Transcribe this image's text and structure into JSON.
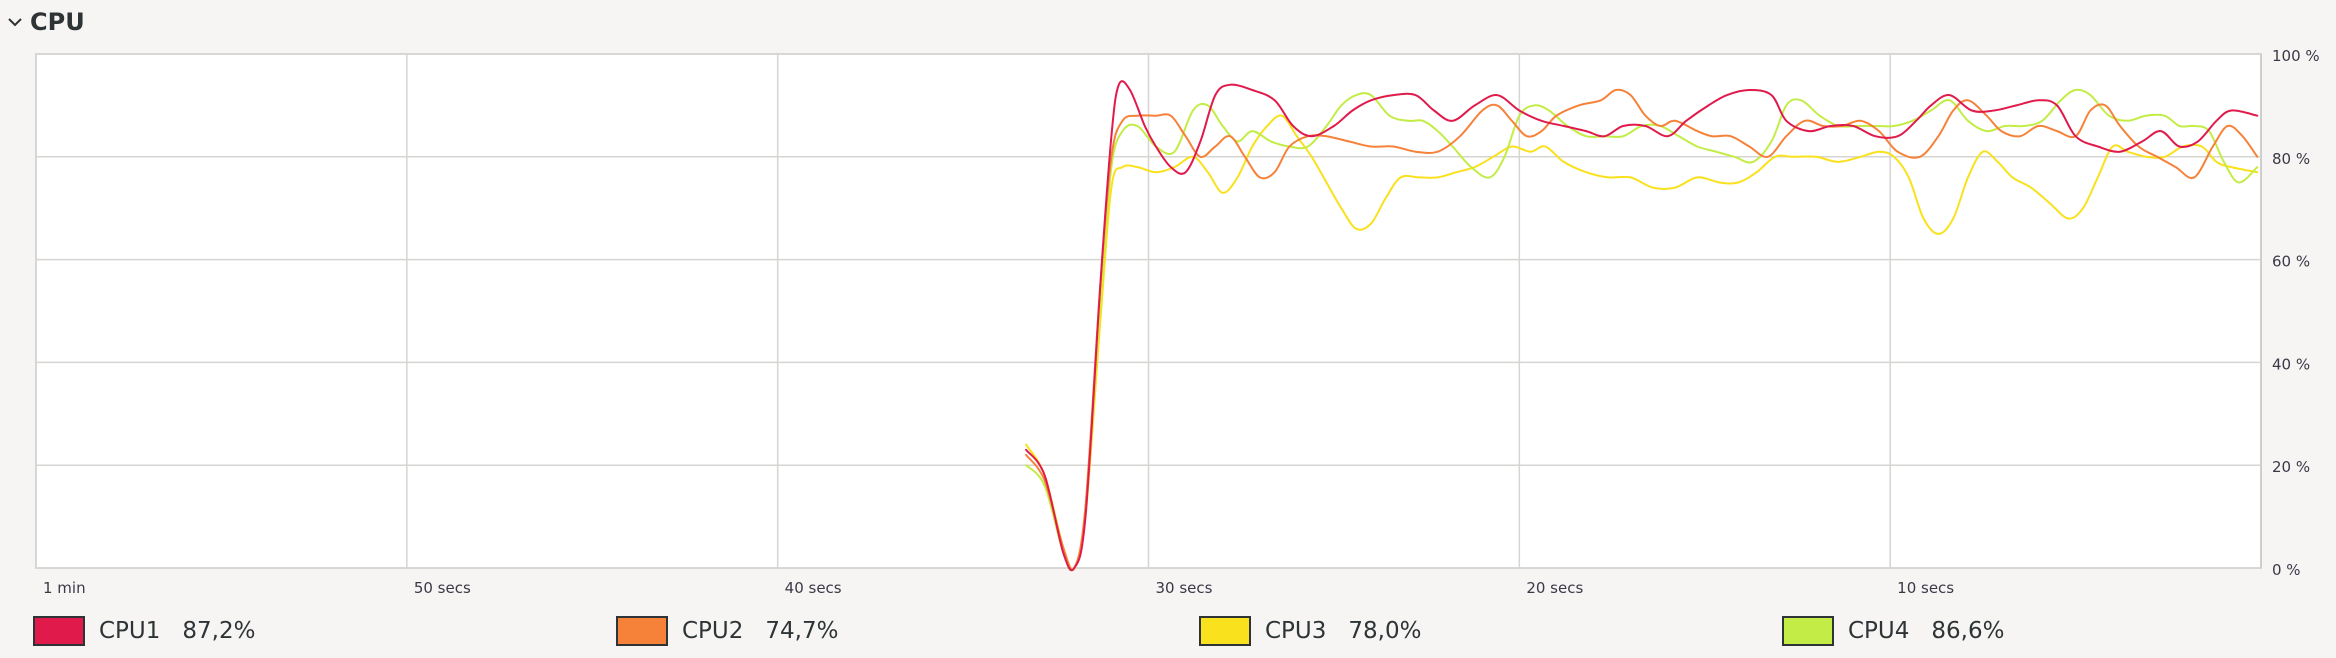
{
  "section": {
    "title": "CPU"
  },
  "chart_data": {
    "type": "line",
    "x_unit": "seconds ago",
    "x_range": [
      60,
      0
    ],
    "y_range": [
      0,
      100
    ],
    "x_ticks": [
      {
        "t": 60,
        "label": "1 min"
      },
      {
        "t": 50,
        "label": "50 secs"
      },
      {
        "t": 40,
        "label": "40 secs"
      },
      {
        "t": 30,
        "label": "30 secs"
      },
      {
        "t": 20,
        "label": "20 secs"
      },
      {
        "t": 10,
        "label": "10 secs"
      }
    ],
    "y_ticks": [
      {
        "v": 100,
        "label": "100 %"
      },
      {
        "v": 80,
        "label": "80 %"
      },
      {
        "v": 60,
        "label": "60 %"
      },
      {
        "v": 40,
        "label": "40 %"
      },
      {
        "v": 20,
        "label": "20 %"
      },
      {
        "v": 0,
        "label": "0 %"
      }
    ],
    "grid": true,
    "series": [
      {
        "name": "CPU1",
        "value_label": "87,2%",
        "color": "#e01b4c",
        "points": [
          [
            33.3,
            23
          ],
          [
            32.8,
            18
          ],
          [
            32.3,
            3
          ],
          [
            32.0,
            0
          ],
          [
            31.7,
            10
          ],
          [
            31.3,
            55
          ],
          [
            31.0,
            84
          ],
          [
            30.8,
            94
          ],
          [
            30.5,
            93
          ],
          [
            30.1,
            86
          ],
          [
            29.8,
            82
          ],
          [
            29.4,
            78
          ],
          [
            29.0,
            77
          ],
          [
            28.6,
            83
          ],
          [
            28.2,
            92
          ],
          [
            27.8,
            94
          ],
          [
            27.2,
            93
          ],
          [
            26.6,
            91
          ],
          [
            26.1,
            86
          ],
          [
            25.6,
            84
          ],
          [
            25.0,
            86
          ],
          [
            24.5,
            89
          ],
          [
            24.0,
            91
          ],
          [
            23.4,
            92
          ],
          [
            22.8,
            92
          ],
          [
            22.3,
            89
          ],
          [
            21.8,
            87
          ],
          [
            21.2,
            90
          ],
          [
            20.6,
            92
          ],
          [
            20.0,
            89
          ],
          [
            19.4,
            87
          ],
          [
            18.8,
            86
          ],
          [
            18.2,
            85
          ],
          [
            17.7,
            84
          ],
          [
            17.2,
            86
          ],
          [
            16.6,
            86
          ],
          [
            16.0,
            84
          ],
          [
            15.5,
            87
          ],
          [
            14.9,
            90
          ],
          [
            14.4,
            92
          ],
          [
            13.8,
            93
          ],
          [
            13.2,
            92
          ],
          [
            12.8,
            87
          ],
          [
            12.2,
            85
          ],
          [
            11.6,
            86
          ],
          [
            11.0,
            86
          ],
          [
            10.4,
            84
          ],
          [
            9.8,
            84
          ],
          [
            9.3,
            87
          ],
          [
            8.9,
            90
          ],
          [
            8.4,
            92
          ],
          [
            7.8,
            89
          ],
          [
            7.2,
            89
          ],
          [
            6.6,
            90
          ],
          [
            6.0,
            91
          ],
          [
            5.5,
            90
          ],
          [
            5.0,
            84
          ],
          [
            4.4,
            82
          ],
          [
            3.8,
            81
          ],
          [
            3.2,
            83
          ],
          [
            2.7,
            85
          ],
          [
            2.2,
            82
          ],
          [
            1.7,
            83
          ],
          [
            1.2,
            87
          ],
          [
            0.8,
            89
          ],
          [
            0.1,
            88
          ]
        ]
      },
      {
        "name": "CPU2",
        "value_label": "74,7%",
        "color": "#f6823a",
        "points": [
          [
            33.3,
            22
          ],
          [
            32.8,
            17
          ],
          [
            32.3,
            4
          ],
          [
            32.0,
            0
          ],
          [
            31.7,
            12
          ],
          [
            31.3,
            55
          ],
          [
            31.0,
            80
          ],
          [
            30.7,
            87
          ],
          [
            30.3,
            88
          ],
          [
            29.8,
            88
          ],
          [
            29.4,
            88
          ],
          [
            29.0,
            84
          ],
          [
            28.6,
            80
          ],
          [
            28.2,
            82
          ],
          [
            27.8,
            84
          ],
          [
            27.4,
            80
          ],
          [
            27.0,
            76
          ],
          [
            26.6,
            77
          ],
          [
            26.2,
            82
          ],
          [
            25.7,
            84
          ],
          [
            25.2,
            84
          ],
          [
            24.6,
            83
          ],
          [
            24.0,
            82
          ],
          [
            23.4,
            82
          ],
          [
            22.8,
            81
          ],
          [
            22.2,
            81
          ],
          [
            21.6,
            84
          ],
          [
            21.0,
            89
          ],
          [
            20.6,
            90
          ],
          [
            20.2,
            87
          ],
          [
            19.8,
            84
          ],
          [
            19.4,
            85
          ],
          [
            19.0,
            88
          ],
          [
            18.4,
            90
          ],
          [
            17.8,
            91
          ],
          [
            17.4,
            93
          ],
          [
            17.0,
            92
          ],
          [
            16.6,
            88
          ],
          [
            16.2,
            86
          ],
          [
            15.8,
            87
          ],
          [
            15.2,
            85
          ],
          [
            14.8,
            84
          ],
          [
            14.3,
            84
          ],
          [
            13.8,
            82
          ],
          [
            13.3,
            80
          ],
          [
            12.8,
            84
          ],
          [
            12.3,
            87
          ],
          [
            11.8,
            86
          ],
          [
            11.3,
            86
          ],
          [
            10.8,
            87
          ],
          [
            10.3,
            85
          ],
          [
            9.8,
            81
          ],
          [
            9.2,
            80
          ],
          [
            8.7,
            84
          ],
          [
            8.3,
            89
          ],
          [
            7.9,
            91
          ],
          [
            7.4,
            88
          ],
          [
            7.0,
            85
          ],
          [
            6.5,
            84
          ],
          [
            6.0,
            86
          ],
          [
            5.5,
            85
          ],
          [
            5.0,
            84
          ],
          [
            4.6,
            89
          ],
          [
            4.2,
            90
          ],
          [
            3.8,
            86
          ],
          [
            3.3,
            82
          ],
          [
            2.8,
            80
          ],
          [
            2.3,
            78
          ],
          [
            1.8,
            76
          ],
          [
            1.3,
            82
          ],
          [
            0.9,
            86
          ],
          [
            0.5,
            84
          ],
          [
            0.1,
            80
          ]
        ]
      },
      {
        "name": "CPU3",
        "value_label": "78,0%",
        "color": "#f9e11d",
        "points": [
          [
            33.3,
            24
          ],
          [
            32.8,
            18
          ],
          [
            32.3,
            4
          ],
          [
            32.0,
            0
          ],
          [
            31.7,
            10
          ],
          [
            31.3,
            48
          ],
          [
            31.0,
            74
          ],
          [
            30.7,
            78
          ],
          [
            30.3,
            78
          ],
          [
            29.8,
            77
          ],
          [
            29.3,
            78
          ],
          [
            28.8,
            80
          ],
          [
            28.4,
            77
          ],
          [
            28.0,
            73
          ],
          [
            27.6,
            76
          ],
          [
            27.2,
            82
          ],
          [
            26.8,
            86
          ],
          [
            26.4,
            88
          ],
          [
            26.0,
            84
          ],
          [
            25.6,
            80
          ],
          [
            25.2,
            75
          ],
          [
            24.8,
            70
          ],
          [
            24.4,
            66
          ],
          [
            24.0,
            67
          ],
          [
            23.6,
            72
          ],
          [
            23.2,
            76
          ],
          [
            22.7,
            76
          ],
          [
            22.2,
            76
          ],
          [
            21.7,
            77
          ],
          [
            21.2,
            78
          ],
          [
            20.7,
            80
          ],
          [
            20.2,
            82
          ],
          [
            19.7,
            81
          ],
          [
            19.3,
            82
          ],
          [
            18.8,
            79
          ],
          [
            18.2,
            77
          ],
          [
            17.6,
            76
          ],
          [
            17.0,
            76
          ],
          [
            16.4,
            74
          ],
          [
            15.8,
            74
          ],
          [
            15.2,
            76
          ],
          [
            14.6,
            75
          ],
          [
            14.1,
            75
          ],
          [
            13.6,
            77
          ],
          [
            13.1,
            80
          ],
          [
            12.6,
            80
          ],
          [
            12.0,
            80
          ],
          [
            11.4,
            79
          ],
          [
            10.8,
            80
          ],
          [
            10.3,
            81
          ],
          [
            9.9,
            80
          ],
          [
            9.5,
            76
          ],
          [
            9.1,
            68
          ],
          [
            8.7,
            65
          ],
          [
            8.3,
            68
          ],
          [
            7.9,
            76
          ],
          [
            7.5,
            81
          ],
          [
            7.1,
            79
          ],
          [
            6.7,
            76
          ],
          [
            6.2,
            74
          ],
          [
            5.7,
            71
          ],
          [
            5.2,
            68
          ],
          [
            4.8,
            70
          ],
          [
            4.4,
            76
          ],
          [
            4.0,
            82
          ],
          [
            3.6,
            81
          ],
          [
            3.1,
            80
          ],
          [
            2.6,
            80
          ],
          [
            2.1,
            82
          ],
          [
            1.6,
            82
          ],
          [
            1.2,
            79
          ],
          [
            0.8,
            78
          ],
          [
            0.1,
            77
          ]
        ]
      },
      {
        "name": "CPU4",
        "value_label": "86,6%",
        "color": "#c3ed46",
        "points": [
          [
            33.3,
            20
          ],
          [
            32.8,
            16
          ],
          [
            32.3,
            3
          ],
          [
            32.0,
            0
          ],
          [
            31.7,
            11
          ],
          [
            31.3,
            52
          ],
          [
            31.0,
            78
          ],
          [
            30.7,
            85
          ],
          [
            30.3,
            86
          ],
          [
            29.8,
            82
          ],
          [
            29.3,
            81
          ],
          [
            28.8,
            89
          ],
          [
            28.4,
            90
          ],
          [
            28.0,
            86
          ],
          [
            27.6,
            83
          ],
          [
            27.2,
            85
          ],
          [
            26.7,
            83
          ],
          [
            26.2,
            82
          ],
          [
            25.7,
            82
          ],
          [
            25.2,
            86
          ],
          [
            24.8,
            90
          ],
          [
            24.4,
            92
          ],
          [
            24.0,
            92
          ],
          [
            23.5,
            88
          ],
          [
            23.0,
            87
          ],
          [
            22.6,
            87
          ],
          [
            22.2,
            85
          ],
          [
            21.8,
            82
          ],
          [
            21.3,
            78
          ],
          [
            20.8,
            76
          ],
          [
            20.4,
            80
          ],
          [
            20.0,
            88
          ],
          [
            19.6,
            90
          ],
          [
            19.2,
            89
          ],
          [
            18.7,
            86
          ],
          [
            18.2,
            84
          ],
          [
            17.7,
            84
          ],
          [
            17.2,
            84
          ],
          [
            16.7,
            86
          ],
          [
            16.2,
            86
          ],
          [
            15.7,
            84
          ],
          [
            15.2,
            82
          ],
          [
            14.7,
            81
          ],
          [
            14.2,
            80
          ],
          [
            13.7,
            79
          ],
          [
            13.2,
            83
          ],
          [
            12.8,
            90
          ],
          [
            12.4,
            91
          ],
          [
            11.9,
            88
          ],
          [
            11.4,
            86
          ],
          [
            10.9,
            86
          ],
          [
            10.4,
            86
          ],
          [
            9.9,
            86
          ],
          [
            9.4,
            87
          ],
          [
            8.9,
            89
          ],
          [
            8.4,
            91
          ],
          [
            7.9,
            87
          ],
          [
            7.4,
            85
          ],
          [
            6.9,
            86
          ],
          [
            6.4,
            86
          ],
          [
            5.9,
            87
          ],
          [
            5.4,
            91
          ],
          [
            5.0,
            93
          ],
          [
            4.6,
            92
          ],
          [
            4.1,
            88
          ],
          [
            3.6,
            87
          ],
          [
            3.1,
            88
          ],
          [
            2.6,
            88
          ],
          [
            2.2,
            86
          ],
          [
            1.8,
            86
          ],
          [
            1.4,
            85
          ],
          [
            1.0,
            79
          ],
          [
            0.6,
            75
          ],
          [
            0.1,
            78
          ]
        ]
      }
    ]
  },
  "legend": [
    {
      "name": "CPU1",
      "value": "87,2%",
      "color": "#e01b4c"
    },
    {
      "name": "CPU2",
      "value": "74,7%",
      "color": "#f6823a"
    },
    {
      "name": "CPU3",
      "value": "78,0%",
      "color": "#f9e11d"
    },
    {
      "name": "CPU4",
      "value": "86,6%",
      "color": "#c3ed46"
    }
  ]
}
